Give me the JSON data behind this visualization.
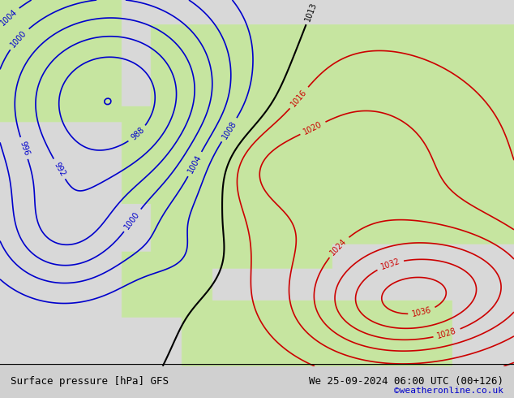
{
  "title_left": "Surface pressure [hPa] GFS",
  "title_right": "We 25-09-2024 06:00 UTC (00+126)",
  "watermark": "©weatheronline.co.uk",
  "bg_color": "#e8e8e8",
  "land_color": "#c8e6a0",
  "sea_color": "#d8d8d8",
  "contour_color_low": "#0000cc",
  "contour_color_high": "#cc0000",
  "contour_color_black": "#000000",
  "label_fontsize": 9,
  "footer_fontsize": 9,
  "watermark_color": "#0000cc",
  "figsize": [
    6.34,
    4.9
  ],
  "dpi": 100
}
